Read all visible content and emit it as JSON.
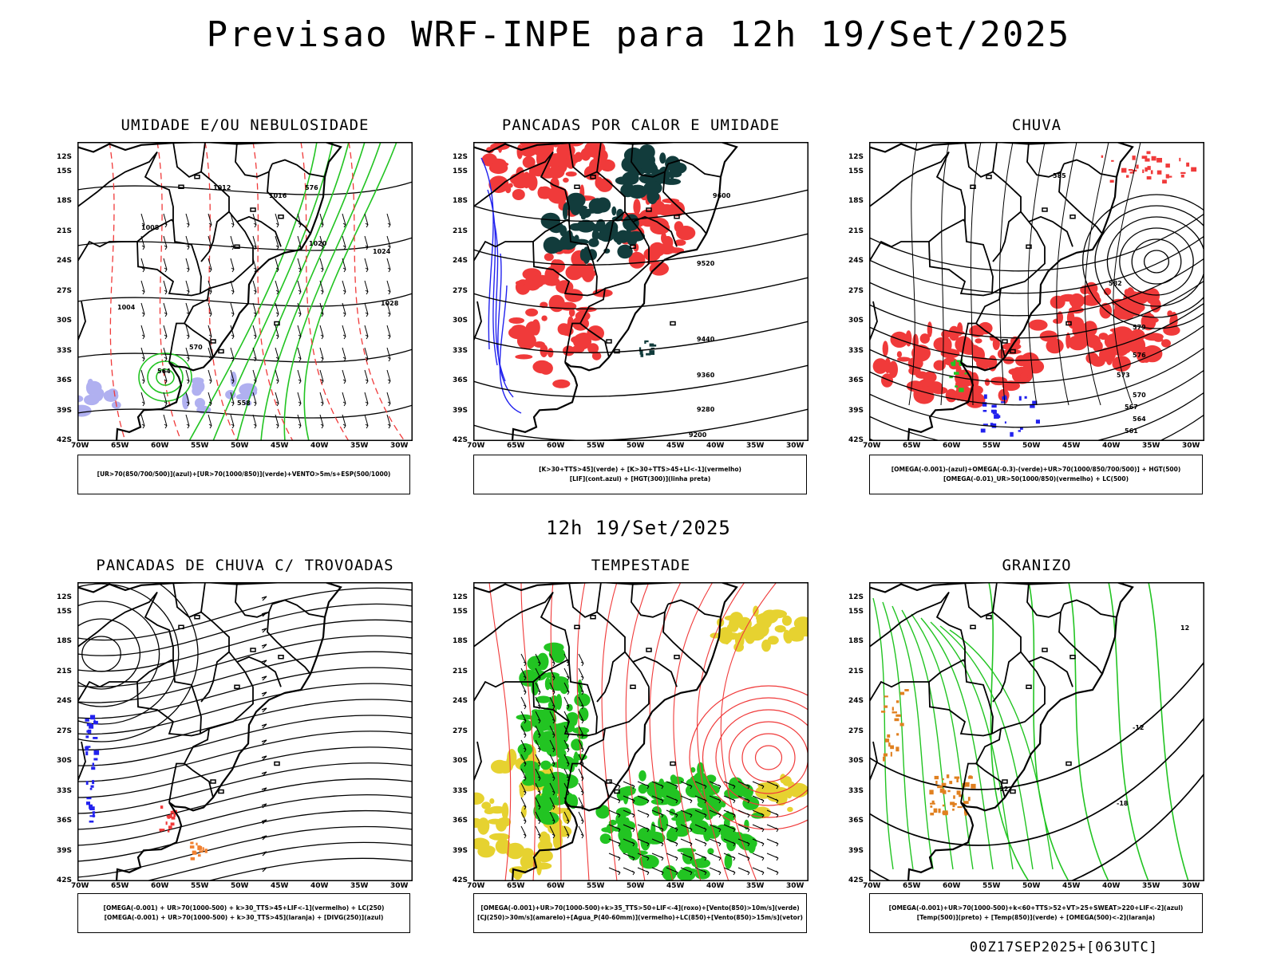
{
  "main_title": "Previsao WRF-INPE  para 12h 19/Set/2025",
  "middle_title": "12h 19/Set/2025",
  "footer": "00Z17SEP2025+[063UTC]",
  "lat_labels": [
    "12S",
    "15S",
    "18S",
    "21S",
    "24S",
    "27S",
    "30S",
    "33S",
    "36S",
    "39S",
    "42S"
  ],
  "lon_labels": [
    "70W",
    "65W",
    "60W",
    "55W",
    "50W",
    "45W",
    "40W",
    "35W",
    "30W"
  ],
  "panels": [
    {
      "id": "umidade",
      "title": "UMIDADE E/OU NEBULOSIDADE",
      "legend": [
        "[UR>70(850/700/500)](azul)+[UR>70(1000/850)](verde)+VENTO>5m/s+ESP(500/1000)"
      ],
      "contour_labels": [
        "1012",
        "1016",
        "1020",
        "1008",
        "1004",
        "1024",
        "1028",
        "576",
        "570",
        "564",
        "558"
      ]
    },
    {
      "id": "pancadas-calor",
      "title": "PANCADAS POR CALOR E UMIDADE",
      "legend": [
        "[K>30+TTS>45](verde) + [K>30+TTS>45+LI<-1](vermelho)",
        "[LIF](cont.azul) + [HGT(300)](linha preta)"
      ],
      "contour_labels": [
        "9600",
        "9520",
        "9440",
        "9360",
        "9280",
        "9200"
      ]
    },
    {
      "id": "chuva",
      "title": "CHUVA",
      "legend": [
        "[OMEGA(-0.001)-(azul)+OMEGA(-0.3)-(verde)+UR>70(1000/850/700/500)] + HGT(500)",
        "[OMEGA(-0.01)_UR>50(1000/850)(vermelho) + LC(500)"
      ],
      "contour_labels": [
        "585",
        "582",
        "579",
        "576",
        "573",
        "570",
        "567",
        "564",
        "561"
      ]
    },
    {
      "id": "pancadas-trovoadas",
      "title": "PANCADAS DE CHUVA C/ TROVOADAS",
      "legend": [
        "[OMEGA(-0.001) + UR>70(1000-500) + k>30_TTS>45+LIF<-1](vermelho) + LC(250)",
        "[OMEGA(-0.001) + UR>70(1000-500) + k>30_TTS>45](laranja) + [DIVG(250)](azul)"
      ],
      "contour_labels": []
    },
    {
      "id": "tempestade",
      "title": "TEMPESTADE",
      "legend": [
        "[OMEGA(-0.001)+UR>70(1000-500)+k>35_TTS>50+LIF<-4](roxo)+[Vento(850)>10m/s](verde)",
        "[CJ(250)>30m/s](amarelo)+[Agua_P(40-60mm)](vermelho)+LC(850)+[Vento(850)>15m/s](vetor)"
      ],
      "contour_labels": []
    },
    {
      "id": "granizo",
      "title": "GRANIZO",
      "legend": [
        "[OMEGA(-0.001)+UR>70(1000-500)+k<60+TTS>52+VT>25+SWEAT>220+LIF<-2](azul)",
        "[Temp(500)](preto) + [Temp(850)](verde) + [OMEGA(500)<-2](laranja)"
      ],
      "contour_labels": [
        "-12",
        "-18",
        "12"
      ]
    }
  ],
  "colors": {
    "red": "#f03a3a",
    "green": "#22c422",
    "blue": "#2222ee",
    "dark_teal": "#123c3c",
    "yellow": "#e6d230",
    "lavender": "#b0b0f0",
    "black": "#000000"
  }
}
